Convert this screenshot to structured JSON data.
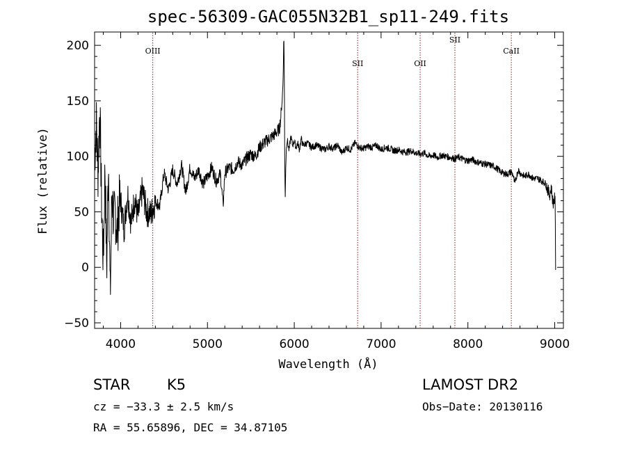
{
  "chart_data": {
    "type": "line",
    "title": "spec-56309-GAC055N32B1_sp11-249.fits",
    "xlabel": "Wavelength (Å)",
    "ylabel": "Flux (relative)",
    "xlim": [
      3700,
      9100
    ],
    "ylim": [
      -55,
      212
    ],
    "xticks": [
      "4000",
      "5000",
      "6000",
      "7000",
      "8000",
      "9000"
    ],
    "yticks": [
      "−50",
      "0",
      "50",
      "100",
      "150",
      "200"
    ],
    "xtick_values": [
      4000,
      5000,
      6000,
      7000,
      8000,
      9000
    ],
    "ytick_values": [
      -50,
      0,
      50,
      100,
      150,
      200
    ],
    "grid": false,
    "line_color": "#000000",
    "marker_color": "#8b1a1a",
    "series": [
      {
        "x": [
          3700,
          3720,
          3740,
          3760,
          3780,
          3800,
          3820,
          3840,
          3860,
          3880,
          3900,
          3920,
          3940,
          3960,
          3980,
          4000,
          4040,
          4080,
          4120,
          4160,
          4200,
          4250,
          4300,
          4350,
          4400,
          4450,
          4500,
          4550,
          4600,
          4650,
          4700,
          4750,
          4800,
          4850,
          4900,
          4950,
          5000,
          5050,
          5100,
          5150,
          5180,
          5200,
          5250,
          5300,
          5350,
          5400,
          5450,
          5500,
          5550,
          5600,
          5650,
          5700,
          5750,
          5800,
          5830,
          5850,
          5860,
          5870,
          5880,
          5885,
          5890,
          5895,
          5900,
          5910,
          5920,
          5940,
          5960,
          5980,
          6000,
          6020,
          6040,
          6060,
          6080,
          6100,
          6150,
          6200,
          6250,
          6300,
          6350,
          6400,
          6450,
          6500,
          6550,
          6600,
          6650,
          6700,
          6750,
          6800,
          6850,
          6900,
          6950,
          7000,
          7050,
          7100,
          7150,
          7200,
          7250,
          7300,
          7350,
          7400,
          7450,
          7500,
          7550,
          7600,
          7650,
          7700,
          7750,
          7800,
          7850,
          7900,
          7950,
          8000,
          8050,
          8100,
          8150,
          8200,
          8250,
          8300,
          8350,
          8400,
          8450,
          8500,
          8520,
          8540,
          8560,
          8580,
          8600,
          8650,
          8700,
          8750,
          8800,
          8850,
          8900,
          8920,
          8940,
          8960,
          8980,
          9000,
          9005,
          9010
        ],
        "y": [
          100,
          130,
          85,
          145,
          60,
          5,
          90,
          0,
          100,
          -30,
          70,
          40,
          50,
          30,
          55,
          60,
          35,
          68,
          40,
          62,
          45,
          70,
          50,
          48,
          60,
          55,
          85,
          70,
          88,
          75,
          92,
          68,
          90,
          80,
          88,
          75,
          82,
          90,
          78,
          84,
          55,
          85,
          90,
          88,
          95,
          92,
          98,
          102,
          100,
          108,
          112,
          115,
          118,
          122,
          125,
          140,
          150,
          165,
          210,
          180,
          100,
          60,
          85,
          110,
          115,
          105,
          118,
          110,
          114,
          108,
          112,
          106,
          116,
          110,
          112,
          108,
          110,
          108,
          106,
          109,
          107,
          110,
          103,
          108,
          106,
          112,
          108,
          107,
          109,
          108,
          110,
          106,
          108,
          107,
          105,
          106,
          104,
          104,
          105,
          103,
          102,
          103,
          100,
          101,
          99,
          101,
          100,
          99,
          98,
          99,
          97,
          96,
          97,
          95,
          94,
          93,
          92,
          91,
          88,
          85,
          84,
          86,
          83,
          75,
          82,
          88,
          85,
          82,
          84,
          80,
          80,
          78,
          75,
          70,
          65,
          72,
          58,
          62,
          58,
          2
        ]
      }
    ],
    "lines": [
      {
        "label": "OIII",
        "x": 4370
      },
      {
        "label": "SII",
        "x": 6730
      },
      {
        "label": "OII",
        "x": 7450
      },
      {
        "label": "SII",
        "x": 7850
      },
      {
        "label": "CaII",
        "x": 8500
      }
    ]
  },
  "info": {
    "object_class": "STAR",
    "subclass": "K5",
    "survey": "LAMOST DR2",
    "cz": "cz = −33.3 ± 2.5 km/s",
    "obs_date": "Obs−Date: 20130116",
    "coords": "RA =  55.65896, DEC =  34.87105"
  }
}
